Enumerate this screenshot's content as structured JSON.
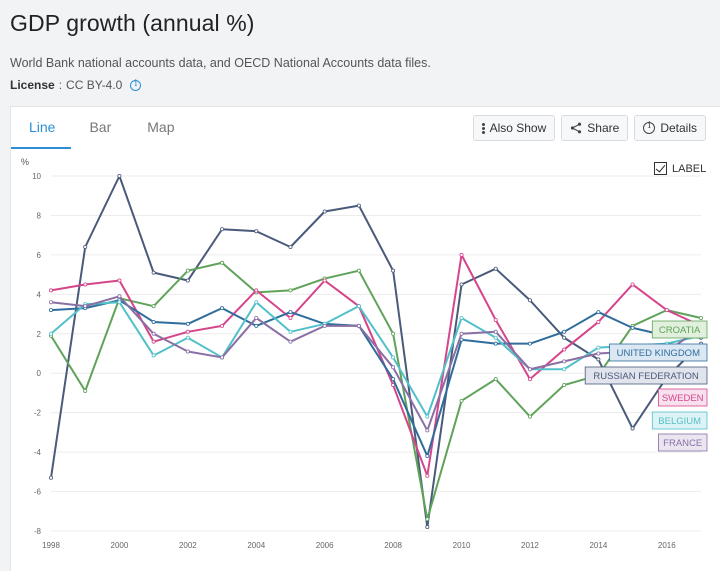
{
  "header": {
    "title": "GDP growth (annual %)",
    "subtitle": "World Bank national accounts data, and OECD National Accounts data files.",
    "license_label": "License",
    "license_sep": ":",
    "license_value": "CC BY-4.0"
  },
  "tabs": [
    {
      "label": "Line",
      "active": true
    },
    {
      "label": "Bar",
      "active": false
    },
    {
      "label": "Map",
      "active": false
    }
  ],
  "actions": {
    "also_show": "Also Show",
    "share": "Share",
    "details": "Details"
  },
  "label_toggle": {
    "label": "LABEL",
    "checked": true
  },
  "colors": {
    "accent": "#2c8fd6",
    "croatia": "#5fa35a",
    "united_kingdom": "#2f6d9c",
    "russia": "#4a5a7a",
    "sweden": "#d6458b",
    "belgium": "#52c0c8",
    "france": "#8a6fa5"
  },
  "chart_data": {
    "type": "line",
    "ylabel": "%",
    "ylim": [
      -8,
      10
    ],
    "xlim": [
      1998,
      2017
    ],
    "x": [
      1998,
      1999,
      2000,
      2001,
      2002,
      2003,
      2004,
      2005,
      2006,
      2007,
      2008,
      2009,
      2010,
      2011,
      2012,
      2013,
      2014,
      2015,
      2016,
      2017
    ],
    "y_ticks": [
      "10",
      "8",
      "6",
      "4",
      "2",
      "0",
      "-2",
      "-4",
      "-6",
      "-8"
    ],
    "x_ticks": [
      "1998",
      "2000",
      "2002",
      "2004",
      "2006",
      "2008",
      "2010",
      "2012",
      "2014",
      "2016"
    ],
    "grid": true,
    "series": [
      {
        "name": "RUSSIAN FEDERATION",
        "color": "#4a5a7a",
        "values": [
          -5.3,
          6.4,
          10.0,
          5.1,
          4.7,
          7.3,
          7.2,
          6.4,
          8.2,
          8.5,
          5.2,
          -7.8,
          4.5,
          5.3,
          3.7,
          1.8,
          0.7,
          -2.8,
          -0.2,
          1.5
        ]
      },
      {
        "name": "CROATIA",
        "color": "#5fa35a",
        "values": [
          1.9,
          -0.9,
          3.8,
          3.4,
          5.2,
          5.6,
          4.1,
          4.2,
          4.8,
          5.2,
          2.0,
          -7.4,
          -1.4,
          -0.3,
          -2.2,
          -0.6,
          -0.1,
          2.4,
          3.2,
          2.8
        ]
      },
      {
        "name": "SWEDEN",
        "color": "#d6458b",
        "values": [
          4.2,
          4.5,
          4.7,
          1.6,
          2.1,
          2.4,
          4.2,
          2.8,
          4.7,
          3.4,
          -0.6,
          -5.2,
          6.0,
          2.7,
          -0.3,
          1.2,
          2.6,
          4.5,
          3.2,
          2.4
        ]
      },
      {
        "name": "UNITED KINGDOM",
        "color": "#2f6d9c",
        "values": [
          3.2,
          3.3,
          3.7,
          2.6,
          2.5,
          3.3,
          2.4,
          3.1,
          2.5,
          2.4,
          -0.3,
          -4.2,
          1.7,
          1.5,
          1.5,
          2.1,
          3.1,
          2.3,
          1.9,
          1.8
        ]
      },
      {
        "name": "BELGIUM",
        "color": "#52c0c8",
        "values": [
          2.0,
          3.5,
          3.6,
          0.9,
          1.8,
          0.8,
          3.6,
          2.1,
          2.5,
          3.4,
          0.8,
          -2.2,
          2.8,
          1.8,
          0.2,
          0.2,
          1.3,
          1.4,
          1.5,
          1.9
        ]
      },
      {
        "name": "FRANCE",
        "color": "#8a6fa5",
        "values": [
          3.6,
          3.4,
          3.9,
          2.0,
          1.1,
          0.8,
          2.8,
          1.6,
          2.4,
          2.4,
          0.3,
          -2.9,
          2.0,
          2.1,
          0.2,
          0.6,
          1.0,
          1.1,
          1.1,
          2.3
        ]
      }
    ],
    "end_labels": [
      {
        "text": "CROATIA",
        "series": "CROATIA"
      },
      {
        "text": "UNITED KINGDOM",
        "series": "UNITED KINGDOM"
      },
      {
        "text": "RUSSIAN FEDERATION",
        "series": "RUSSIAN FEDERATION"
      },
      {
        "text": "SWEDEN",
        "series": "SWEDEN"
      },
      {
        "text": "BELGIUM",
        "series": "BELGIUM"
      },
      {
        "text": "FRANCE",
        "series": "FRANCE"
      }
    ]
  }
}
